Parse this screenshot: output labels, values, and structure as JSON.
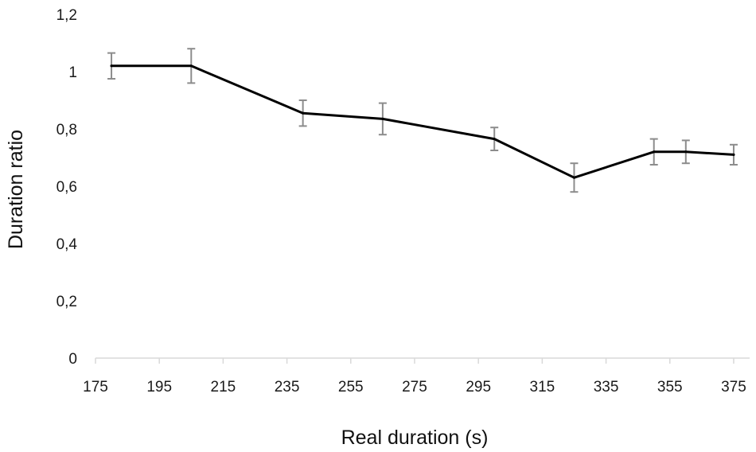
{
  "chart_data": {
    "type": "line",
    "title": "",
    "xlabel": "Real duration (s)",
    "ylabel": "Duration ratio",
    "xlim": [
      175,
      380
    ],
    "ylim": [
      0,
      1.2
    ],
    "x_ticks": [
      175,
      195,
      215,
      235,
      255,
      275,
      295,
      315,
      335,
      355,
      375
    ],
    "y_ticks": [
      0,
      0.2,
      0.4,
      0.6,
      0.8,
      1,
      1.2
    ],
    "y_tick_labels": [
      "0",
      "0,2",
      "0,4",
      "0,6",
      "0,8",
      "1",
      "1,2"
    ],
    "grid": false,
    "legend": "none",
    "series": [
      {
        "x": [
          180,
          205,
          240,
          265,
          300,
          325,
          350,
          360,
          375
        ],
        "values": [
          1.02,
          1.02,
          0.855,
          0.835,
          0.765,
          0.63,
          0.72,
          0.72,
          0.71
        ],
        "error": [
          0.045,
          0.06,
          0.045,
          0.055,
          0.04,
          0.05,
          0.045,
          0.04,
          0.035
        ]
      }
    ],
    "colors": {
      "line": "#000000",
      "error_bar": "#8c8c8c",
      "axis": "#d9d9d9"
    }
  }
}
